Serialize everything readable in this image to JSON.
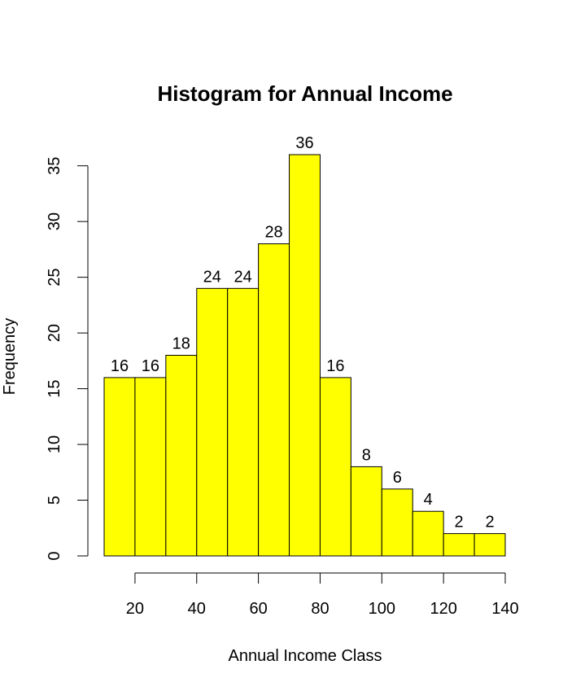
{
  "chart_data": {
    "type": "bar",
    "title": "Histogram for Annual Income",
    "xlabel": "Annual Income Class",
    "ylabel": "Frequency",
    "bin_edges": [
      10,
      20,
      30,
      40,
      50,
      60,
      70,
      80,
      90,
      100,
      110,
      120,
      130,
      140
    ],
    "values": [
      16,
      16,
      18,
      24,
      24,
      28,
      36,
      16,
      8,
      6,
      4,
      2,
      2
    ],
    "xlim": [
      10,
      140
    ],
    "ylim": [
      0,
      36
    ],
    "x_ticks": [
      20,
      40,
      60,
      80,
      100,
      120,
      140
    ],
    "y_ticks": [
      0,
      5,
      10,
      15,
      20,
      25,
      30,
      35
    ],
    "bar_color": "#ffff00",
    "bar_labels": true,
    "grid": false,
    "legend": "none"
  }
}
